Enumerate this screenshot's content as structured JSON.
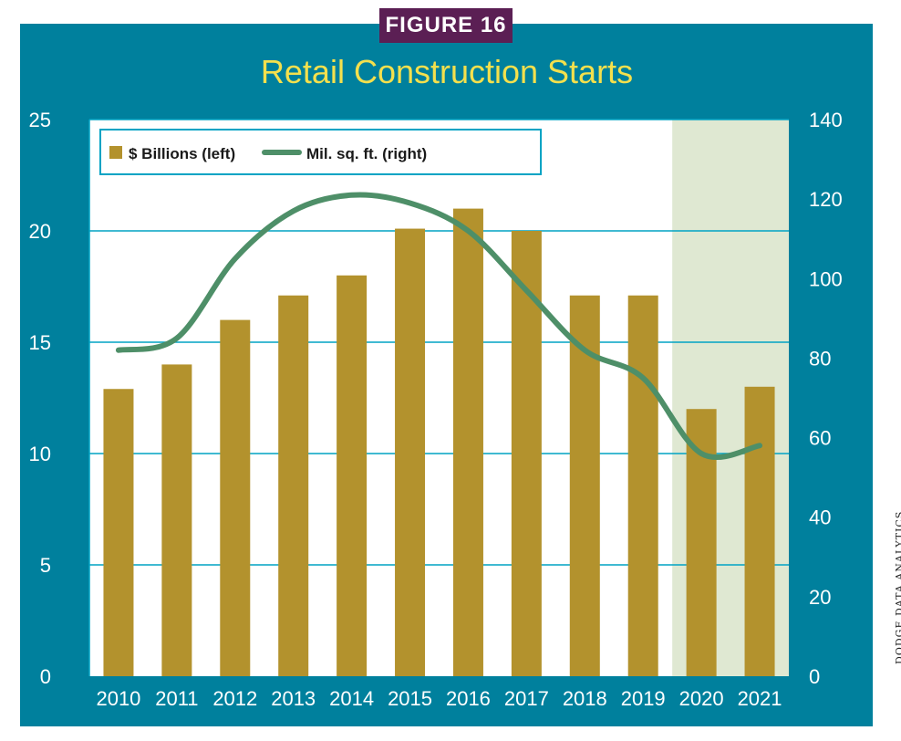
{
  "figure_label": "FIGURE 16",
  "source": "DODGE DATA ANALYTICS",
  "colors": {
    "panel": "#00809d",
    "plot_bg": "#ffffff",
    "forecast_shade": "#dfe8d2",
    "bar": "#b3922d",
    "line": "#4e8f68",
    "title": "#f4e04d",
    "label_bg": "#5b1f54",
    "gridline": "#00a3c4"
  },
  "chart_data": {
    "type": "bar",
    "title": "Retail Construction Starts",
    "categories": [
      "2010",
      "2011",
      "2012",
      "2013",
      "2014",
      "2015",
      "2016",
      "2017",
      "2018",
      "2019",
      "2020",
      "2021"
    ],
    "series": [
      {
        "name": "$ Billions (left)",
        "type": "bar",
        "axis": "left",
        "values": [
          12.9,
          14.0,
          16.0,
          17.1,
          18.0,
          20.1,
          21.0,
          20.0,
          17.1,
          17.1,
          12.0,
          13.0
        ]
      },
      {
        "name": "Mil. sq. ft. (right)",
        "type": "line",
        "axis": "right",
        "values": [
          82,
          85,
          105,
          117,
          121,
          119,
          112,
          97,
          82,
          75,
          56,
          58
        ]
      }
    ],
    "y_left": {
      "min": 0,
      "max": 25,
      "ticks": [
        0,
        5,
        10,
        15,
        20,
        25
      ]
    },
    "y_right": {
      "min": 0,
      "max": 140,
      "ticks": [
        0,
        20,
        40,
        60,
        80,
        100,
        120,
        140
      ]
    },
    "forecast_categories": [
      "2020",
      "2021"
    ],
    "grid": "horizontal",
    "legend": "top-left"
  }
}
